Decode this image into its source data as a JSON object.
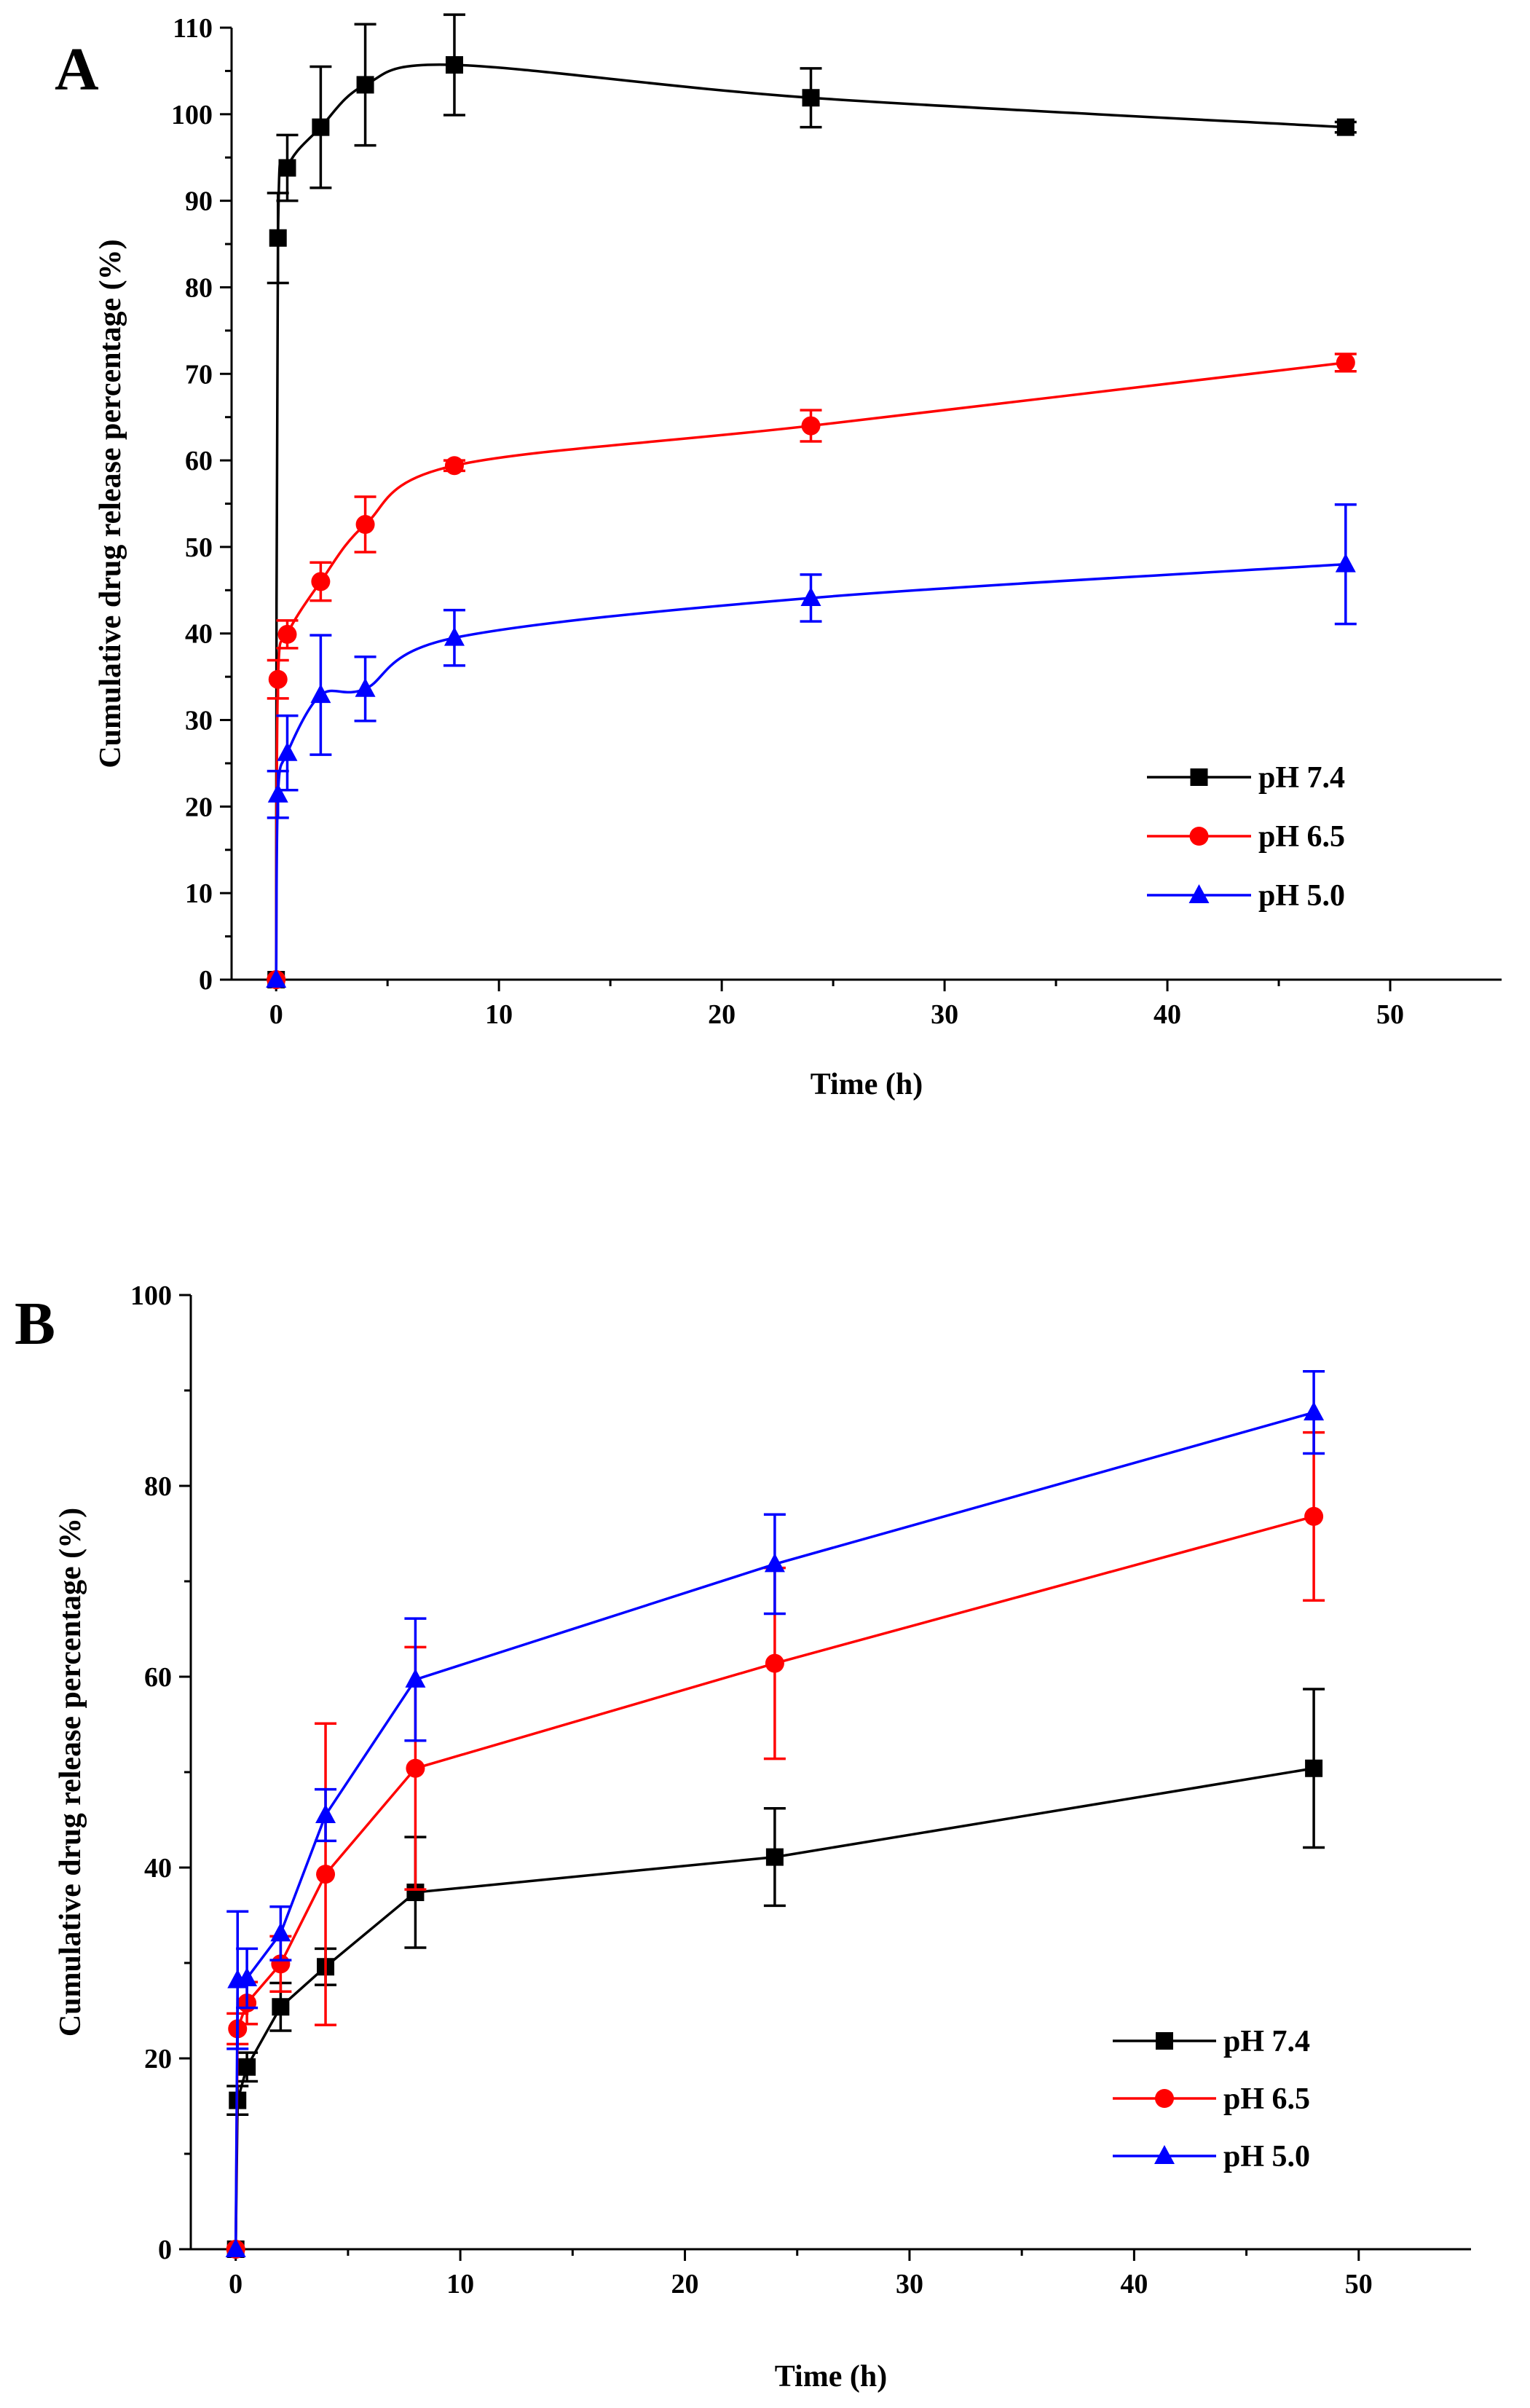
{
  "chart_data": [
    {
      "panel_label": "A",
      "type": "line",
      "xlabel": "Time (h)",
      "ylabel": "Cumulative drug release percentage (%)",
      "xlim": [
        -2,
        55
      ],
      "ylim": [
        0,
        110
      ],
      "xticks": [
        0,
        10,
        20,
        30,
        40,
        50
      ],
      "yticks": [
        0,
        10,
        20,
        30,
        40,
        50,
        60,
        70,
        80,
        90,
        100,
        110
      ],
      "legend_position": "bottom-right",
      "smooth": true,
      "x": [
        0,
        0.083,
        0.5,
        2,
        4,
        8,
        24,
        48
      ],
      "series": [
        {
          "name": "pH 7.4",
          "color": "#000000",
          "marker": "square",
          "values": [
            0,
            85.7,
            93.8,
            98.5,
            103.4,
            105.7,
            101.9,
            98.5
          ],
          "errors": [
            0,
            5.2,
            3.8,
            7.0,
            7.0,
            5.8,
            3.4,
            0.6
          ]
        },
        {
          "name": "pH 6.5",
          "color": "#ff0000",
          "marker": "circle",
          "values": [
            0,
            34.7,
            39.9,
            46.0,
            52.6,
            59.4,
            64.0,
            71.3
          ],
          "errors": [
            0,
            2.2,
            1.6,
            2.2,
            3.2,
            0.6,
            1.8,
            1.0
          ]
        },
        {
          "name": "pH 5.0",
          "color": "#0000ff",
          "marker": "triangle",
          "values": [
            0,
            21.4,
            26.2,
            32.9,
            33.6,
            39.5,
            44.1,
            48.0
          ],
          "errors": [
            0,
            2.7,
            4.3,
            6.9,
            3.7,
            3.2,
            2.7,
            6.9
          ]
        }
      ]
    },
    {
      "panel_label": "B",
      "type": "line",
      "xlabel": "Time (h)",
      "ylabel": "Cumulative drug release percentage (%)",
      "xlim": [
        -2,
        55
      ],
      "ylim": [
        0,
        100
      ],
      "xticks": [
        0,
        10,
        20,
        30,
        40,
        50
      ],
      "yticks": [
        0,
        20,
        40,
        60,
        80,
        100
      ],
      "legend_position": "bottom-right",
      "smooth": false,
      "x": [
        0,
        0.083,
        0.5,
        2,
        4,
        8,
        24,
        48
      ],
      "series": [
        {
          "name": "pH 7.4",
          "color": "#000000",
          "marker": "square",
          "values": [
            0,
            15.6,
            19.1,
            25.4,
            29.6,
            37.4,
            41.1,
            50.4
          ],
          "errors": [
            0,
            1.5,
            1.5,
            2.5,
            1.9,
            5.8,
            5.1,
            8.3
          ]
        },
        {
          "name": "pH 6.5",
          "color": "#ff0000",
          "marker": "circle",
          "values": [
            0,
            23.1,
            25.8,
            29.9,
            39.3,
            50.4,
            61.4,
            76.8
          ],
          "errors": [
            0,
            1.6,
            2.2,
            2.9,
            15.8,
            12.7,
            10.0,
            8.8
          ]
        },
        {
          "name": "pH 5.0",
          "color": "#0000ff",
          "marker": "triangle",
          "values": [
            0,
            28.2,
            28.4,
            33.1,
            45.5,
            59.7,
            71.8,
            87.7
          ],
          "errors": [
            0,
            7.2,
            3.1,
            2.8,
            2.7,
            6.4,
            5.2,
            4.3
          ]
        }
      ]
    }
  ]
}
